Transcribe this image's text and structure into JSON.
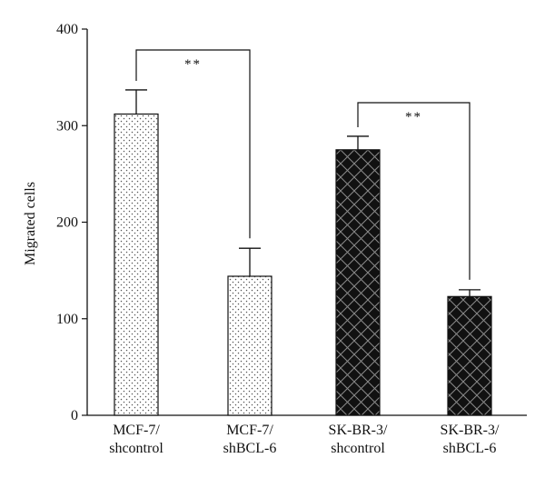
{
  "chart_data": {
    "type": "bar",
    "title": "",
    "xlabel": "",
    "ylabel": "Migrated cells",
    "ylim": [
      0,
      400
    ],
    "yticks": [
      0,
      100,
      200,
      300,
      400
    ],
    "grid": false,
    "legend": "none",
    "categories": [
      [
        "MCF-7/",
        "shcontrol"
      ],
      [
        "MCF-7/",
        "shBCL-6"
      ],
      [
        "SK-BR-3/",
        "shcontrol"
      ],
      [
        "SK-BR-3/",
        "shBCL-6"
      ]
    ],
    "values": [
      312,
      144,
      275,
      123
    ],
    "errors": [
      25,
      29,
      14,
      7
    ],
    "bar_fills": [
      "dotted",
      "dotted",
      "black-crosshatch",
      "black-crosshatch"
    ],
    "significance": [
      {
        "from": 0,
        "to": 1,
        "label": "**"
      },
      {
        "from": 2,
        "to": 3,
        "label": "**"
      }
    ]
  },
  "colors": {
    "axis": "#111111",
    "bar_outline": "#111111",
    "dotted_fill_bg": "#ffffff",
    "dotted_fill_dots": "#555555",
    "crosshatch_fill_bg": "#111111",
    "crosshatch_lines": "#8a8a8a"
  }
}
